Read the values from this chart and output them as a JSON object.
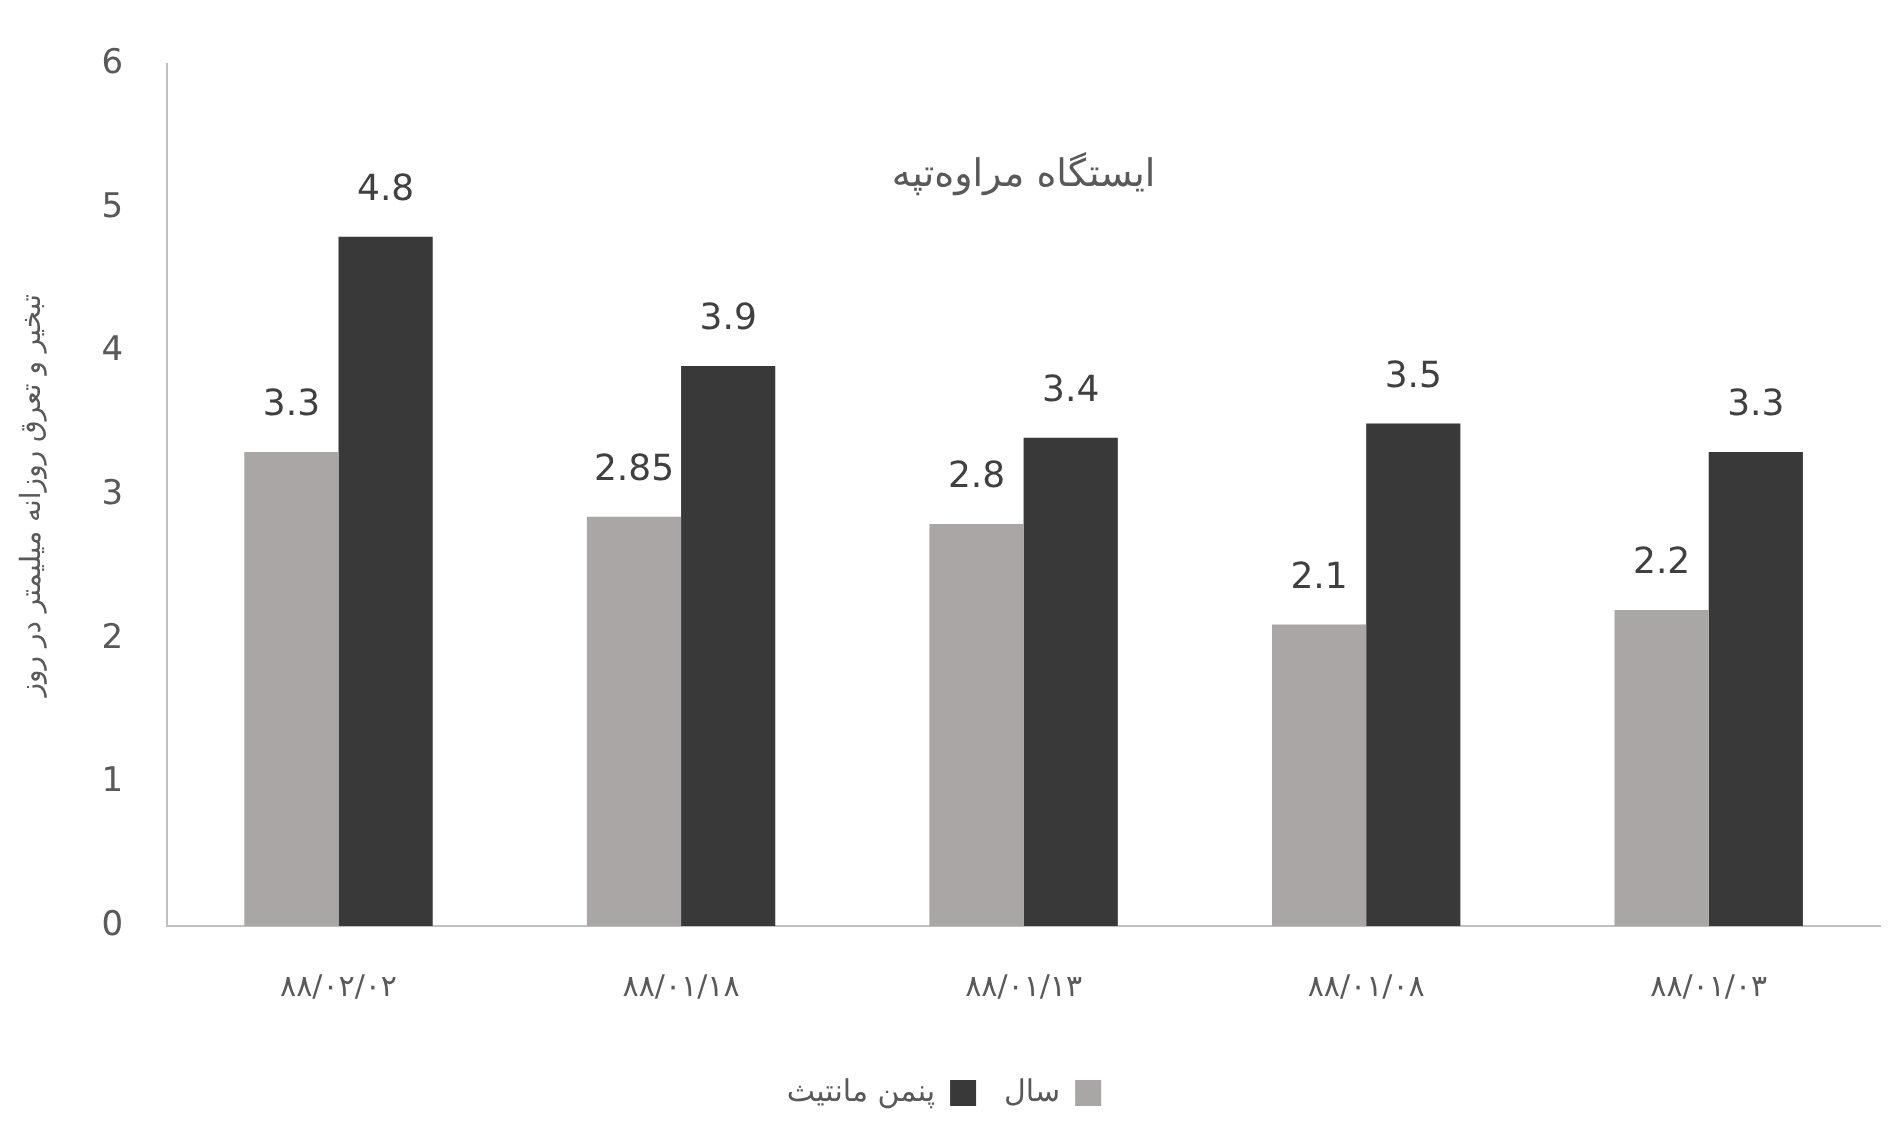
{
  "chart_data": {
    "type": "bar",
    "title": "ایستگاه مراوه‌تپه",
    "ylabel": "تبخیر و تعرق روزانه میلیمتر در روز",
    "categories": [
      "۸۸/۰۲/۰۲",
      "۸۸/۰۱/۱۸",
      "۸۸/۰۱/۱۳",
      "۸۸/۰۱/۰۸",
      "۸۸/۰۱/۰۳"
    ],
    "series": [
      {
        "name": "سال",
        "color": "#a9a6a5",
        "values": [
          3.3,
          2.85,
          2.8,
          2.1,
          2.2
        ]
      },
      {
        "name": "پنمن مانتیث",
        "color": "#393939",
        "values": [
          4.8,
          3.9,
          3.4,
          3.5,
          3.3
        ]
      }
    ],
    "ylim": [
      0,
      6
    ],
    "yticks": [
      0,
      1,
      2,
      3,
      4,
      5,
      6
    ],
    "grid": false,
    "legend": "bottom",
    "data_labels": true
  }
}
